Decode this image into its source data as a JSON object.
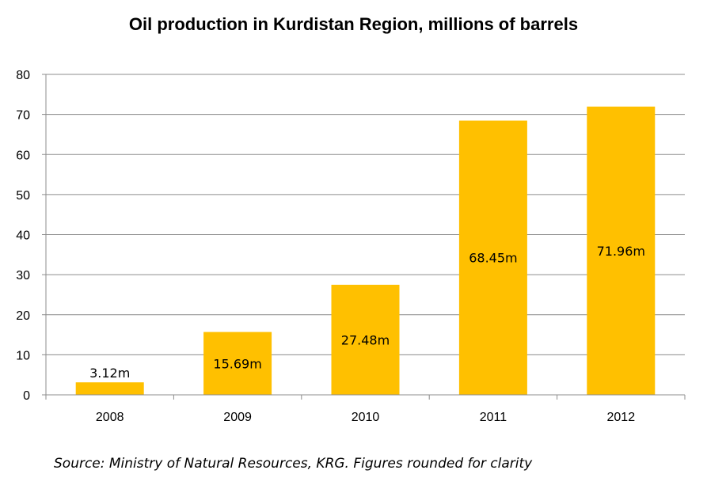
{
  "chart_data": {
    "type": "bar",
    "title": "Oil production in Kurdistan Region, millions of  barrels",
    "categories": [
      "2008",
      "2009",
      "2010",
      "2011",
      "2012"
    ],
    "values": [
      3.12,
      15.69,
      27.48,
      68.45,
      71.96
    ],
    "data_labels": [
      "3.12m",
      "15.69m",
      "27.48m",
      "68.45m",
      "71.96m"
    ],
    "ylim": [
      0,
      80
    ],
    "yticks": [
      0,
      10,
      20,
      30,
      40,
      50,
      60,
      70,
      80
    ],
    "grid": true,
    "legend": "none",
    "bar_color": "#FFC000"
  },
  "footer": {
    "source": "Source: Ministry of Natural Resources, KRG. Figures rounded for clarity"
  }
}
